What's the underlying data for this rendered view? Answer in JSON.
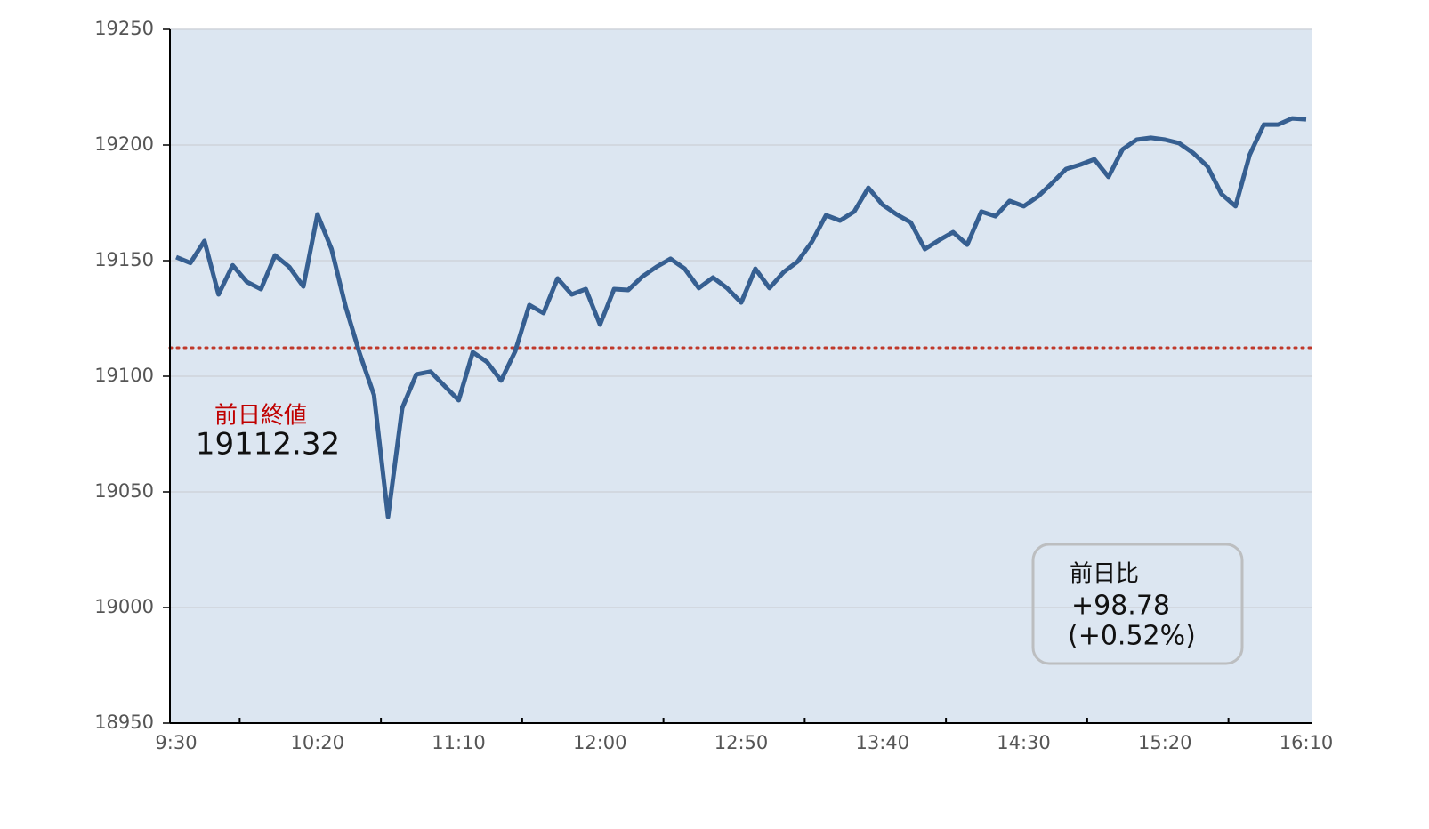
{
  "chart_data": {
    "type": "line",
    "categories": [
      "9:30",
      null,
      null,
      null,
      null,
      null,
      null,
      null,
      null,
      null,
      "10:20",
      null,
      null,
      null,
      null,
      null,
      null,
      null,
      null,
      null,
      "11:10",
      null,
      null,
      null,
      null,
      null,
      null,
      null,
      null,
      null,
      "12:00",
      null,
      null,
      null,
      null,
      null,
      null,
      null,
      null,
      null,
      "12:50",
      null,
      null,
      null,
      null,
      null,
      null,
      null,
      null,
      null,
      "13:40",
      null,
      null,
      null,
      null,
      null,
      null,
      null,
      null,
      null,
      "14:30",
      null,
      null,
      null,
      null,
      null,
      null,
      null,
      null,
      null,
      "15:20",
      null,
      null,
      null,
      null,
      null,
      null,
      null,
      null,
      null,
      "16:10"
    ],
    "values": [
      19151.5,
      19149,
      19158.5,
      19135.4,
      19148,
      19140.8,
      19137.7,
      19152.3,
      19147.3,
      19138.8,
      19170,
      19155,
      19130,
      19109.6,
      19091.9,
      19039.2,
      19086.2,
      19100.8,
      19102,
      19095.8,
      19089.6,
      19110.4,
      19106.2,
      19098.1,
      19110.8,
      19130.8,
      19127.3,
      19142.3,
      19135.4,
      19137.7,
      19122.3,
      19137.7,
      19137.3,
      19143.1,
      19147.3,
      19150.8,
      19146.5,
      19138.1,
      19142.7,
      19138.1,
      19131.9,
      19146.5,
      19138.1,
      19145,
      19149.6,
      19158.1,
      19169.6,
      19167.3,
      19171.2,
      19181.5,
      19174.2,
      19170,
      19166.5,
      19155,
      19158.8,
      19162.3,
      19156.9,
      19171.2,
      19169.2,
      19175.8,
      19173.5,
      19177.7,
      19183.5,
      19189.6,
      19191.5,
      19193.8,
      19186.2,
      19198.1,
      19202.3,
      19203.1,
      19202.3,
      19200.8,
      19196.5,
      19190.8,
      19178.8,
      19173.5,
      19195.8,
      19208.8,
      19208.8,
      19211.5,
      19211.1
    ],
    "color": "#365f91",
    "ylim": [
      18950,
      19250
    ],
    "yticks": [
      18950,
      19000,
      19050,
      19100,
      19150,
      19200,
      19250
    ],
    "grid": true,
    "reference_line": {
      "value": 19112.32,
      "label": "前日終値",
      "color": "#c0392b"
    },
    "change_box": {
      "title": "前日比",
      "change": "+98.78",
      "percent": "(+0.52%)"
    }
  }
}
